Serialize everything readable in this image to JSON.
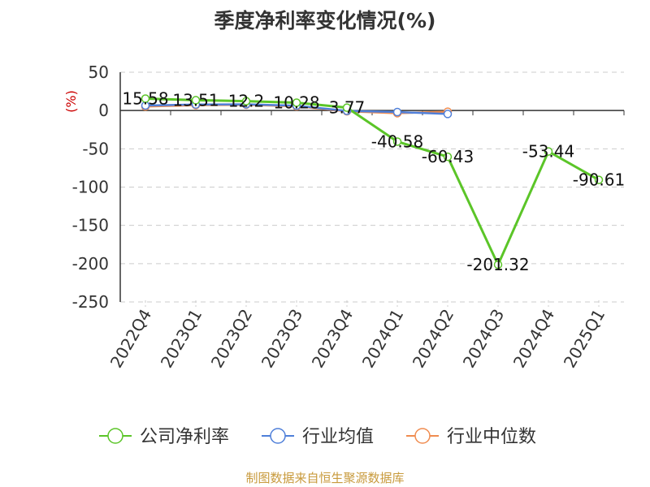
{
  "title": "季度净利率变化情况(%)",
  "source": "制图数据来自恒生聚源数据库",
  "chart_data": {
    "type": "line",
    "title": "季度净利率变化情况(%)",
    "ylabel": "(%)",
    "xlabel": "",
    "ylim": [
      -250,
      50
    ],
    "yticks": [
      50,
      0,
      -50,
      -100,
      -150,
      -200,
      -250
    ],
    "categories": [
      "2022Q4",
      "2023Q1",
      "2023Q2",
      "2023Q3",
      "2023Q4",
      "2024Q1",
      "2024Q2",
      "2024Q3",
      "2024Q4",
      "2025Q1"
    ],
    "grid": true,
    "legend_position": "bottom",
    "series": [
      {
        "name": "公司净利率",
        "color": "#5bc528",
        "values": [
          15.58,
          13.51,
          12.2,
          10.28,
          3.77,
          -40.58,
          -60.43,
          -201.32,
          -53.44,
          -90.61
        ],
        "labels": [
          "15.58",
          "13.51",
          "12.2",
          "10.28",
          "3.77",
          "-40.58",
          "-60.43",
          "-201.32",
          "-53.44",
          "-90.61"
        ]
      },
      {
        "name": "行业均值",
        "color": "#4f7fd9",
        "values": [
          6.5,
          7.8,
          8.1,
          6.3,
          -0.5,
          -2.0,
          -4.5,
          null,
          null,
          null
        ]
      },
      {
        "name": "行业中位数",
        "color": "#f08c50",
        "values": [
          5.2,
          7.0,
          7.5,
          5.5,
          -1.0,
          -3.5,
          -1.5,
          null,
          null,
          null
        ]
      }
    ]
  }
}
